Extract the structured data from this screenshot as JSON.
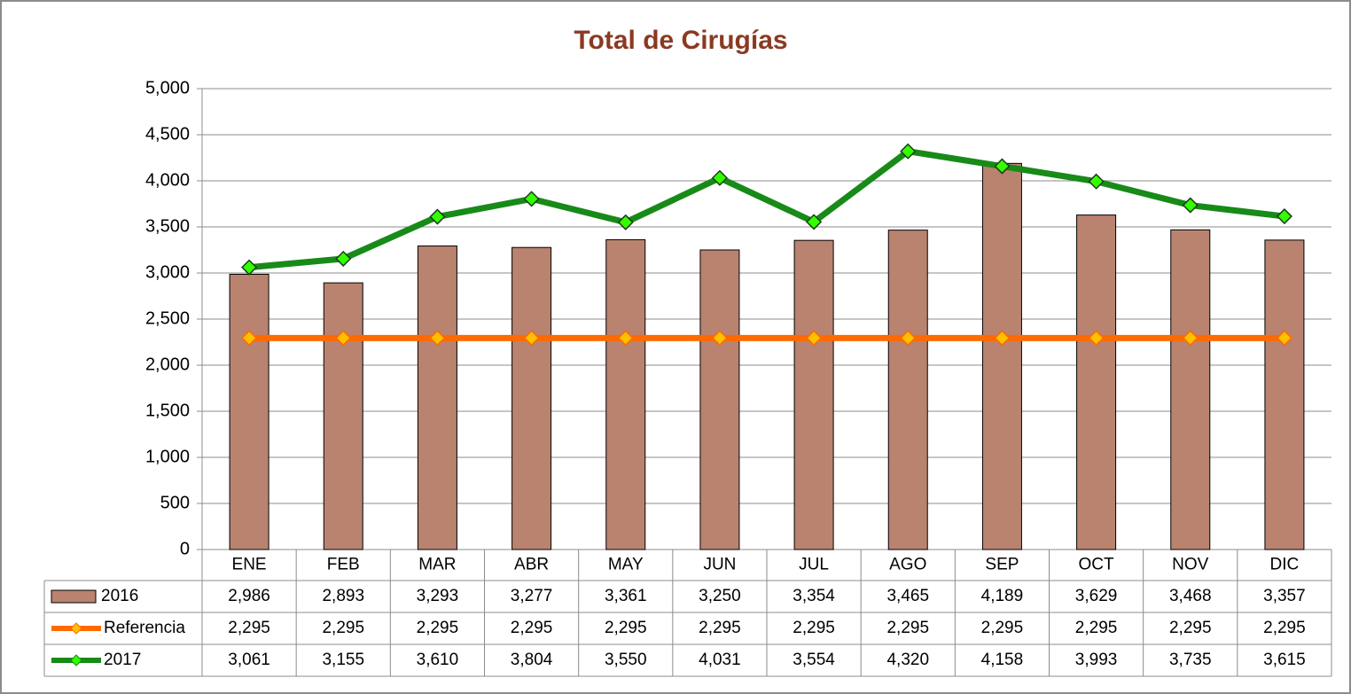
{
  "chart_data": {
    "type": "bar",
    "title": "Total de Cirugías",
    "categories": [
      "ENE",
      "FEB",
      "MAR",
      "ABR",
      "MAY",
      "JUN",
      "JUL",
      "AGO",
      "SEP",
      "OCT",
      "NOV",
      "DIC"
    ],
    "series": [
      {
        "name": "2016",
        "type": "bar",
        "color": "#b9836f",
        "values": [
          2986,
          2893,
          3293,
          3277,
          3361,
          3250,
          3354,
          3465,
          4189,
          3629,
          3468,
          3357
        ],
        "value_labels": [
          "2,986",
          "2,893",
          "3,293",
          "3,277",
          "3,361",
          "3,250",
          "3,354",
          "3,465",
          "4,189",
          "3,629",
          "3,468",
          "3,357"
        ]
      },
      {
        "name": "Referencia",
        "type": "line",
        "color": "#ff6a00",
        "marker_color": "#ffc000",
        "values": [
          2295,
          2295,
          2295,
          2295,
          2295,
          2295,
          2295,
          2295,
          2295,
          2295,
          2295,
          2295
        ],
        "value_labels": [
          "2,295",
          "2,295",
          "2,295",
          "2,295",
          "2,295",
          "2,295",
          "2,295",
          "2,295",
          "2,295",
          "2,295",
          "2,295",
          "2,295"
        ]
      },
      {
        "name": "2017",
        "type": "line",
        "color": "#188a18",
        "marker_color": "#33ff00",
        "values": [
          3061,
          3155,
          3610,
          3804,
          3550,
          4031,
          3554,
          4320,
          4158,
          3993,
          3735,
          3615
        ],
        "value_labels": [
          "3,061",
          "3,155",
          "3,610",
          "3,804",
          "3,550",
          "4,031",
          "3,554",
          "4,320",
          "4,158",
          "3,993",
          "3,735",
          "3,615"
        ]
      }
    ],
    "ylim": [
      0,
      5000
    ],
    "yticks": [
      0,
      500,
      {
        "value": 1000,
        "label": "1,000"
      },
      {
        "value": 1500,
        "label": "1,500"
      },
      {
        "value": 2000,
        "label": "2,000"
      },
      {
        "value": 2500,
        "label": "2,500"
      },
      {
        "value": 3000,
        "label": "3,000"
      },
      {
        "value": 3500,
        "label": "3,500"
      },
      {
        "value": 4000,
        "label": "4,000"
      },
      {
        "value": 4500,
        "label": "4,500"
      },
      {
        "value": 5000,
        "label": "5,000"
      }
    ],
    "grid": true
  }
}
